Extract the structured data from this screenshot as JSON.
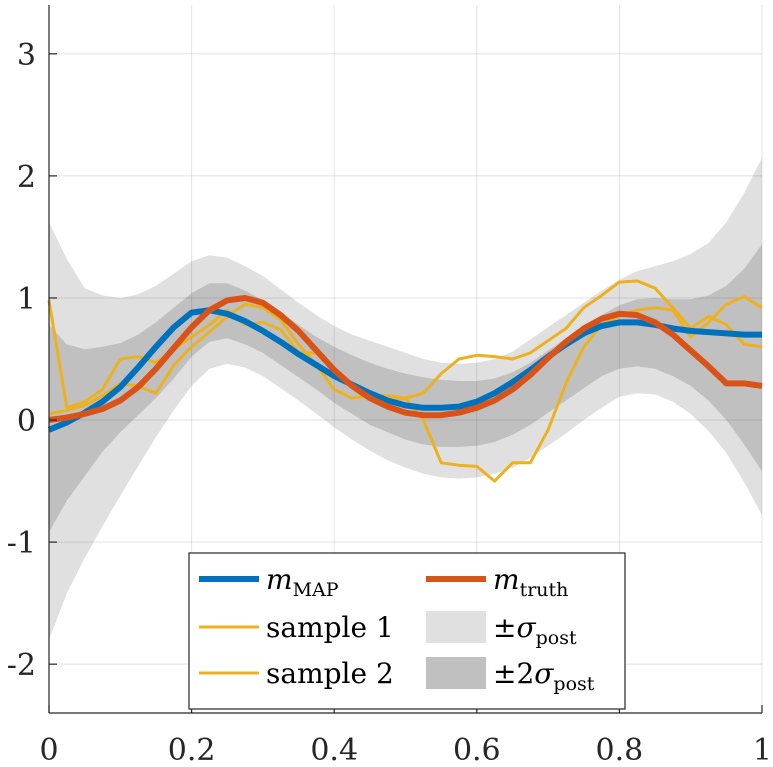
{
  "chart_data": {
    "type": "line",
    "title": "",
    "xlabel": "",
    "ylabel": "",
    "xlim": [
      0,
      1
    ],
    "ylim": [
      -2.4,
      3.4
    ],
    "grid": true,
    "x_ticks": [
      0,
      0.2,
      0.4,
      0.6,
      0.8,
      1
    ],
    "x_tick_labels": [
      "0",
      "0.2",
      "0.4",
      "0.6",
      "0.8",
      "1"
    ],
    "y_ticks": [
      -2,
      -1,
      0,
      1,
      2,
      3
    ],
    "y_tick_labels": [
      "-2",
      "-1",
      "0",
      "1",
      "2",
      "3"
    ],
    "x": [
      0,
      0.025,
      0.05,
      0.075,
      0.1,
      0.125,
      0.15,
      0.175,
      0.2,
      0.225,
      0.25,
      0.275,
      0.3,
      0.325,
      0.35,
      0.375,
      0.4,
      0.425,
      0.45,
      0.475,
      0.5,
      0.525,
      0.55,
      0.575,
      0.6,
      0.625,
      0.65,
      0.675,
      0.7,
      0.725,
      0.75,
      0.775,
      0.8,
      0.825,
      0.85,
      0.875,
      0.9,
      0.925,
      0.95,
      0.975,
      1
    ],
    "bands": [
      {
        "name": "±σ_post",
        "color": "#e0e0e0",
        "upper": [
          1.62,
          1.32,
          1.08,
          1.02,
          1.0,
          1.03,
          1.1,
          1.2,
          1.3,
          1.35,
          1.33,
          1.26,
          1.18,
          1.07,
          0.96,
          0.86,
          0.77,
          0.7,
          0.65,
          0.6,
          0.55,
          0.5,
          0.47,
          0.46,
          0.47,
          0.5,
          0.56,
          0.66,
          0.76,
          0.86,
          0.96,
          1.06,
          1.15,
          1.22,
          1.26,
          1.3,
          1.36,
          1.45,
          1.62,
          1.86,
          2.15
        ],
        "lower": [
          -1.8,
          -1.42,
          -1.13,
          -0.87,
          -0.62,
          -0.38,
          -0.14,
          0.08,
          0.28,
          0.42,
          0.46,
          0.43,
          0.36,
          0.26,
          0.16,
          0.05,
          -0.06,
          -0.16,
          -0.25,
          -0.33,
          -0.39,
          -0.44,
          -0.47,
          -0.48,
          -0.47,
          -0.44,
          -0.39,
          -0.31,
          -0.21,
          -0.11,
          0.0,
          0.1,
          0.19,
          0.22,
          0.21,
          0.15,
          0.05,
          -0.09,
          -0.27,
          -0.51,
          -0.78
        ]
      },
      {
        "name": "±2σ_post",
        "color": "#c0c0c0",
        "upper": [
          0.78,
          0.62,
          0.58,
          0.6,
          0.63,
          0.7,
          0.8,
          0.92,
          1.04,
          1.12,
          1.12,
          1.06,
          0.98,
          0.88,
          0.78,
          0.68,
          0.6,
          0.53,
          0.47,
          0.42,
          0.38,
          0.35,
          0.33,
          0.32,
          0.32,
          0.34,
          0.39,
          0.47,
          0.57,
          0.67,
          0.77,
          0.86,
          0.94,
          0.99,
          1.0,
          0.99,
          0.99,
          1.02,
          1.1,
          1.24,
          1.44
        ],
        "lower": [
          -0.92,
          -0.66,
          -0.46,
          -0.26,
          -0.1,
          0.04,
          0.18,
          0.34,
          0.52,
          0.64,
          0.67,
          0.62,
          0.55,
          0.45,
          0.35,
          0.25,
          0.14,
          0.05,
          -0.04,
          -0.1,
          -0.16,
          -0.2,
          -0.22,
          -0.22,
          -0.21,
          -0.18,
          -0.12,
          -0.04,
          0.06,
          0.16,
          0.26,
          0.36,
          0.42,
          0.44,
          0.42,
          0.36,
          0.28,
          0.16,
          0.0,
          -0.2,
          -0.42
        ]
      }
    ],
    "series": [
      {
        "name": "m_MAP",
        "color": "#0072bd",
        "width": 6,
        "values": [
          -0.08,
          -0.02,
          0.06,
          0.15,
          0.27,
          0.43,
          0.6,
          0.76,
          0.88,
          0.9,
          0.87,
          0.81,
          0.73,
          0.64,
          0.54,
          0.45,
          0.36,
          0.29,
          0.22,
          0.16,
          0.12,
          0.1,
          0.1,
          0.11,
          0.15,
          0.22,
          0.31,
          0.41,
          0.52,
          0.62,
          0.71,
          0.77,
          0.8,
          0.8,
          0.78,
          0.75,
          0.73,
          0.72,
          0.71,
          0.7,
          0.7
        ]
      },
      {
        "name": "m_truth",
        "color": "#d95319",
        "width": 6,
        "values": [
          0.0,
          0.02,
          0.05,
          0.09,
          0.16,
          0.27,
          0.42,
          0.59,
          0.76,
          0.9,
          0.98,
          1.0,
          0.96,
          0.86,
          0.73,
          0.57,
          0.41,
          0.28,
          0.18,
          0.11,
          0.06,
          0.04,
          0.04,
          0.06,
          0.1,
          0.16,
          0.25,
          0.37,
          0.51,
          0.64,
          0.75,
          0.83,
          0.87,
          0.86,
          0.8,
          0.7,
          0.57,
          0.44,
          0.3,
          0.3,
          0.28
        ]
      },
      {
        "name": "sample 1",
        "color": "#edb120",
        "width": 3,
        "values": [
          0.98,
          0.1,
          0.15,
          0.25,
          0.5,
          0.52,
          0.47,
          0.58,
          0.68,
          0.78,
          0.9,
          0.78,
          0.8,
          0.74,
          0.55,
          0.55,
          0.42,
          0.3,
          0.22,
          0.15,
          0.18,
          0.22,
          0.38,
          0.5,
          0.53,
          0.52,
          0.5,
          0.55,
          0.65,
          0.75,
          0.92,
          1.02,
          1.13,
          1.14,
          1.08,
          0.92,
          0.75,
          0.85,
          0.78,
          0.62,
          0.6
        ]
      },
      {
        "name": "sample 2",
        "color": "#edb120",
        "width": 3,
        "values": [
          0.05,
          0.08,
          0.12,
          0.2,
          0.3,
          0.28,
          0.22,
          0.45,
          0.6,
          0.72,
          0.85,
          0.95,
          0.92,
          0.82,
          0.62,
          0.45,
          0.25,
          0.18,
          0.2,
          0.2,
          0.18,
          0.0,
          -0.35,
          -0.37,
          -0.38,
          -0.5,
          -0.35,
          -0.35,
          -0.08,
          0.3,
          0.6,
          0.78,
          0.85,
          0.9,
          0.92,
          0.9,
          0.68,
          0.8,
          0.95,
          1.01,
          0.92
        ]
      }
    ]
  },
  "legend": {
    "items": [
      {
        "symbol": "m",
        "sub": "MAP",
        "color": "#0072bd",
        "kind": "line"
      },
      {
        "symbol": "m",
        "sub": "truth",
        "color": "#d95319",
        "kind": "line"
      },
      {
        "label": "sample 1",
        "color": "#edb120",
        "kind": "line"
      },
      {
        "prefix": "±",
        "symbol": "σ",
        "sub": "post",
        "color": "#e0e0e0",
        "kind": "patch"
      },
      {
        "label": "sample 2",
        "color": "#edb120",
        "kind": "line"
      },
      {
        "prefix": "±2",
        "symbol": "σ",
        "sub": "post",
        "color": "#c0c0c0",
        "kind": "patch"
      }
    ]
  }
}
